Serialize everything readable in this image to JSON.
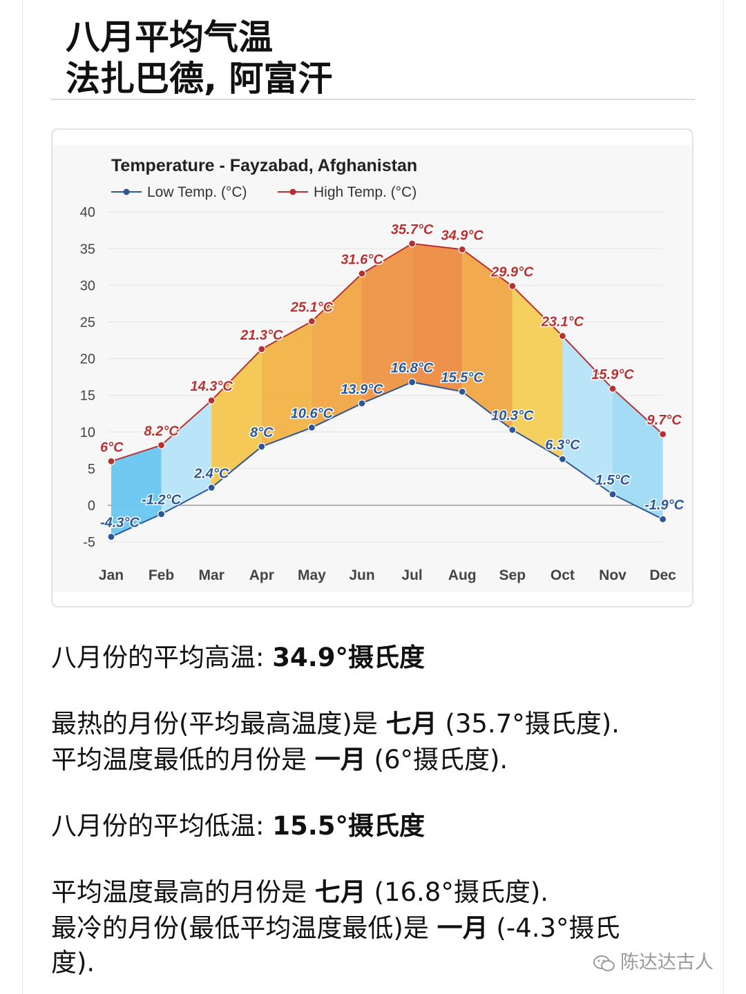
{
  "header": {
    "title_line1": "八月平均气温",
    "title_line2": "法扎巴德, 阿富汗"
  },
  "chart_data": {
    "type": "line",
    "title": "Temperature - Fayzabad, Afghanistan",
    "categories": [
      "Jan",
      "Feb",
      "Mar",
      "Apr",
      "May",
      "Jun",
      "Jul",
      "Aug",
      "Sep",
      "Oct",
      "Nov",
      "Dec"
    ],
    "series": [
      {
        "name": "Low Temp. (°C)",
        "color": "#2b5797",
        "values": [
          -4.3,
          -1.2,
          2.4,
          8,
          10.6,
          13.9,
          16.8,
          15.5,
          10.3,
          6.3,
          1.5,
          -1.9
        ],
        "labels": [
          "-4.3°C",
          "-1.2°C",
          "2.4°C",
          "8°C",
          "10.6°C",
          "13.9°C",
          "16.8°C",
          "15.5°C",
          "10.3°C",
          "6.3°C",
          "1.5°C",
          "-1.9°C"
        ]
      },
      {
        "name": "High Temp. (°C)",
        "color": "#b8302f",
        "values": [
          6,
          8.2,
          14.3,
          21.3,
          25.1,
          31.6,
          35.7,
          34.9,
          29.9,
          23.1,
          15.9,
          9.7
        ],
        "labels": [
          "6°C",
          "8.2°C",
          "14.3°C",
          "21.3°C",
          "25.1°C",
          "31.6°C",
          "35.7°C",
          "34.9°C",
          "29.9°C",
          "23.1°C",
          "15.9°C",
          "9.7°C"
        ]
      }
    ],
    "band_fill_colors": [
      "#68c6f0",
      "#b6e3f8",
      "#f4c64e",
      "#f2b347",
      "#f0a545",
      "#ed9444",
      "#ec8b43",
      "#f0a545",
      "#f5cd55",
      "#b6e3f8",
      "#9fdaf6",
      "#68c6f0"
    ],
    "ylim": [
      -5,
      40
    ],
    "yticks": [
      "40",
      "35",
      "30",
      "25",
      "20",
      "15",
      "10",
      "5",
      "0",
      "-5"
    ],
    "grid": true,
    "legend_position": "top-left"
  },
  "info": {
    "aug_high_label": "八月份的平均高温: ",
    "aug_high_value": "34.9°摄氏度",
    "hottest_prefix": "最热的月份(平均最高温度)是 ",
    "hottest_month": "七月",
    "hottest_suffix": " (35.7°摄氏度).",
    "lowest_high_prefix": "平均温度最低的月份是 ",
    "lowest_high_month": "一月",
    "lowest_high_suffix": " (6°摄氏度).",
    "aug_low_label": "八月份的平均低温: ",
    "aug_low_value": "15.5°摄氏度",
    "highest_low_prefix": "平均温度最高的月份是 ",
    "highest_low_month": "七月",
    "highest_low_suffix": " (16.8°摄氏度).",
    "coldest_prefix": "最冷的月份(最低平均温度最低)是 ",
    "coldest_month": "一月",
    "coldest_suffix": " (-4.3°摄氏",
    "coldest_suffix2": "度)."
  },
  "watermark": {
    "text": "陈达达古人"
  }
}
